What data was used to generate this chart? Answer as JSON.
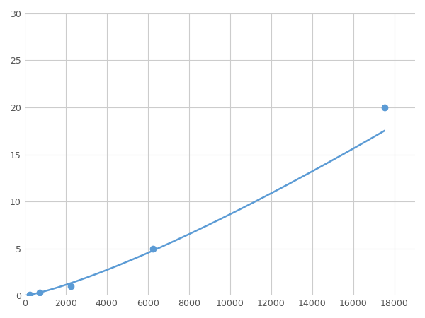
{
  "x_data": [
    250,
    750,
    2250,
    6250,
    17500
  ],
  "y_data": [
    0.1,
    0.3,
    1.0,
    5.0,
    20.0
  ],
  "line_color": "#5B9BD5",
  "marker_color": "#5B9BD5",
  "marker_size": 6,
  "line_width": 1.8,
  "xlim": [
    0,
    19000
  ],
  "ylim": [
    0,
    30
  ],
  "xticks": [
    0,
    2000,
    4000,
    6000,
    8000,
    10000,
    12000,
    14000,
    16000,
    18000
  ],
  "yticks": [
    0,
    5,
    10,
    15,
    20,
    25,
    30
  ],
  "grid_color": "#CCCCCC",
  "background_color": "#FFFFFF",
  "figsize": [
    6.0,
    4.5
  ],
  "dpi": 100
}
